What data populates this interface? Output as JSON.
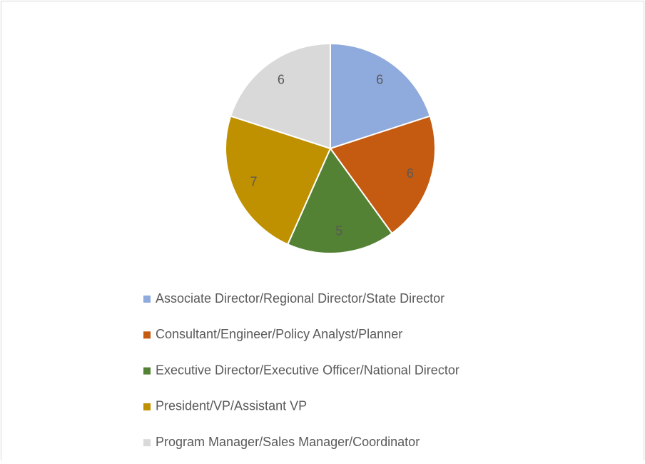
{
  "chart_data": {
    "type": "pie",
    "categories": [
      "Associate Director/Regional Director/State Director",
      "Consultant/Engineer/Policy Analyst/Planner",
      "Executive Director/Executive Officer/National Director",
      "President/VP/Assistant VP",
      "Program Manager/Sales Manager/Coordinator"
    ],
    "values": [
      6,
      6,
      5,
      7,
      6
    ],
    "colors": [
      "#8faadc",
      "#c55a11",
      "#548235",
      "#bf9000",
      "#d9d9d9"
    ],
    "legend": "bottom"
  }
}
